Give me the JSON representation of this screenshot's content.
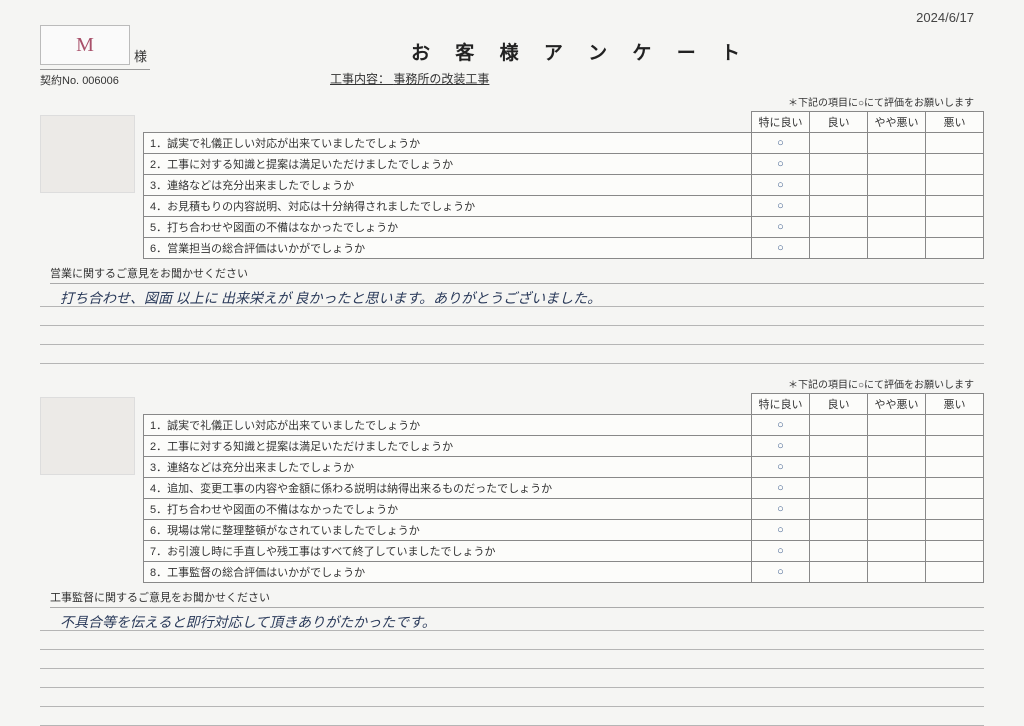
{
  "date": "2024/6/17",
  "customer_initial": "M",
  "honorific": "様",
  "title": "お 客 様 ア ン ケ ー ト",
  "contract_label": "契約No.",
  "contract_no": "006006",
  "work_label": "工事内容：",
  "work_content": "事務所の改装工事",
  "rating_instruction": "＊下記の項目に○にて評価をお願いします",
  "rating_headers": [
    "特に良い",
    "良い",
    "やや悪い",
    "悪い"
  ],
  "section1": {
    "questions": [
      "1．誠実で礼儀正しい対応が出来ていましたでしょうか",
      "2．工事に対する知識と提案は満足いただけましたでしょうか",
      "3．連絡などは充分出来ましたでしょうか",
      "4．お見積もりの内容説明、対応は十分納得されましたでしょうか",
      "5．打ち合わせや図面の不備はなかったでしょうか",
      "6．営業担当の総合評価はいかがでしょうか"
    ],
    "ratings": [
      [
        "○",
        "",
        "",
        ""
      ],
      [
        "○",
        "",
        "",
        ""
      ],
      [
        "○",
        "",
        "",
        ""
      ],
      [
        "○",
        "",
        "",
        ""
      ],
      [
        "○",
        "",
        "",
        ""
      ],
      [
        "○",
        "",
        "",
        ""
      ]
    ],
    "comment_label": "営業に関するご意見をお聞かせください",
    "comment": "打ち合わせ、図面 以上に 出来栄えが 良かったと思います。ありがとうございました。"
  },
  "section2": {
    "questions": [
      "1．誠実で礼儀正しい対応が出来ていましたでしょうか",
      "2．工事に対する知識と提案は満足いただけましたでしょうか",
      "3．連絡などは充分出来ましたでしょうか",
      "4．追加、変更工事の内容や金額に係わる説明は納得出来るものだったでしょうか",
      "5．打ち合わせや図面の不備はなかったでしょうか",
      "6．現場は常に整理整頓がなされていましたでしょうか",
      "7．お引渡し時に手直しや残工事はすべて終了していましたでしょうか",
      "8．工事監督の総合評価はいかがでしょうか"
    ],
    "ratings": [
      [
        "○",
        "",
        "",
        ""
      ],
      [
        "○",
        "",
        "",
        ""
      ],
      [
        "○",
        "",
        "",
        ""
      ],
      [
        "○",
        "",
        "",
        ""
      ],
      [
        "○",
        "",
        "",
        ""
      ],
      [
        "○",
        "",
        "",
        ""
      ],
      [
        "○",
        "",
        "",
        ""
      ],
      [
        "○",
        "",
        "",
        ""
      ]
    ],
    "comment_label": "工事監督に関するご意見をお聞かせください",
    "comment": "不具合等を伝えると即行対応して頂きありがたかったです。"
  }
}
